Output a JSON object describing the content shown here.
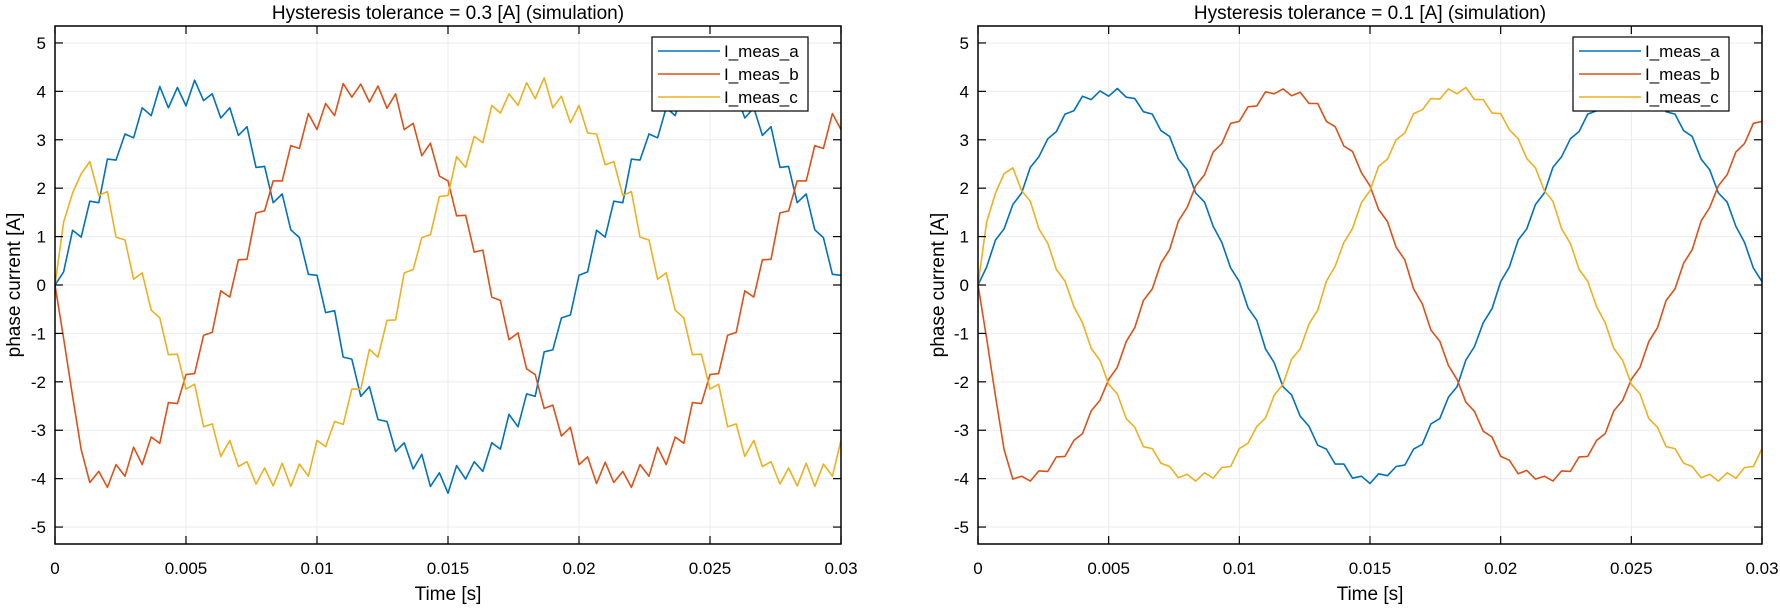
{
  "colors": {
    "I_meas_a": "#0072BD",
    "I_meas_b": "#D95319",
    "I_meas_c": "#EDB120",
    "grid": "#ebebeb"
  },
  "chart_data": [
    {
      "type": "line",
      "title": "Hysteresis tolerance = 0.3 [A] (simulation)",
      "xlabel": "Time [s]",
      "ylabel": "phase current [A]",
      "xlim": [
        0,
        0.03
      ],
      "ylim": [
        -5.35,
        5.35
      ],
      "xticks": [
        0,
        0.005,
        0.01,
        0.015,
        0.02,
        0.025,
        0.03
      ],
      "xtick_labels": [
        "0",
        "0.005",
        "0.01",
        "0.015",
        "0.02",
        "0.025",
        "0.03"
      ],
      "yticks": [
        -5,
        -4,
        -3,
        -2,
        -1,
        0,
        1,
        2,
        3,
        4,
        5
      ],
      "ytick_labels": [
        "-5",
        "-4",
        "-3",
        "-2",
        "-1",
        "0",
        "1",
        "2",
        "3",
        "4",
        "5"
      ],
      "grid": true,
      "legend_position": "top-right",
      "x": [
        0,
        0.00033,
        0.00067,
        0.001,
        0.00133,
        0.00167,
        0.002,
        0.00233,
        0.00267,
        0.003,
        0.00333,
        0.00367,
        0.004,
        0.00433,
        0.00467,
        0.005,
        0.00533,
        0.00567,
        0.006,
        0.00633,
        0.00667,
        0.007,
        0.00733,
        0.00767,
        0.008,
        0.00833,
        0.00867,
        0.009,
        0.00933,
        0.00967,
        0.01,
        0.01033,
        0.01067,
        0.011,
        0.01133,
        0.01167,
        0.012,
        0.01233,
        0.01267,
        0.013,
        0.01333,
        0.01367,
        0.014,
        0.01433,
        0.01467,
        0.015,
        0.01533,
        0.01567,
        0.016,
        0.01633,
        0.01667,
        0.017,
        0.01733,
        0.01767,
        0.018,
        0.01833,
        0.01867,
        0.019,
        0.01933,
        0.01967,
        0.02,
        0.02033,
        0.02067,
        0.021,
        0.02133,
        0.02167,
        0.022,
        0.02233,
        0.02267,
        0.023,
        0.02333,
        0.02367,
        0.024,
        0.02433,
        0.02467,
        0.025,
        0.02533,
        0.02567,
        0.026,
        0.02633,
        0.02667,
        0.027,
        0.02733,
        0.02767,
        0.028,
        0.02833,
        0.02867,
        0.029,
        0.02933,
        0.02967,
        0.03
      ],
      "series": [
        {
          "name": "I_meas_a",
          "values": [
            0,
            0.27,
            1.13,
            0.99,
            1.73,
            1.7,
            2.6,
            2.58,
            3.12,
            3.04,
            3.66,
            3.5,
            4.1,
            3.66,
            4.08,
            3.7,
            4.23,
            3.81,
            3.95,
            3.45,
            3.66,
            3.09,
            3.27,
            2.43,
            2.45,
            1.7,
            1.88,
            1.14,
            0.98,
            0.22,
            0.2,
            -0.57,
            -0.53,
            -1.49,
            -1.53,
            -2.3,
            -2.1,
            -2.78,
            -2.82,
            -3.44,
            -3.26,
            -3.8,
            -3.5,
            -4.16,
            -3.88,
            -4.3,
            -3.73,
            -4.01,
            -3.65,
            -3.85,
            -3.26,
            -3.39,
            -2.67,
            -2.93,
            -2.25,
            -2.3,
            -1.38,
            -1.34,
            -0.68,
            -0.62,
            0.2,
            0.27,
            1.13,
            0.99,
            1.73,
            1.7,
            2.6,
            2.58,
            3.12,
            3.04,
            3.66,
            3.5,
            4.1,
            3.66,
            4.08,
            3.7,
            4.23,
            3.81,
            3.95,
            3.45,
            3.66,
            3.09,
            3.27,
            2.43,
            2.45,
            1.7,
            1.88,
            1.14,
            0.98,
            0.22,
            0.2
          ]
        },
        {
          "name": "I_meas_b",
          "values": [
            0,
            -1.1,
            -2.3,
            -3.4,
            -4.08,
            -3.85,
            -4.18,
            -3.71,
            -3.95,
            -3.35,
            -3.71,
            -3.14,
            -3.27,
            -2.43,
            -2.45,
            -1.85,
            -1.83,
            -1.04,
            -0.98,
            -0.12,
            -0.25,
            0.52,
            0.53,
            1.49,
            1.53,
            2.15,
            2.15,
            2.88,
            2.82,
            3.54,
            3.21,
            3.75,
            3.5,
            4.16,
            3.88,
            4.15,
            3.78,
            4.11,
            3.65,
            3.95,
            3.21,
            3.34,
            2.67,
            2.93,
            2.25,
            2.15,
            1.43,
            1.44,
            0.68,
            0.72,
            -0.25,
            -0.32,
            -1.13,
            -0.99,
            -1.73,
            -1.85,
            -2.55,
            -2.48,
            -3.12,
            -2.94,
            -3.71,
            -3.55,
            -4.1,
            -3.66,
            -4.08,
            -3.85,
            -4.18,
            -3.71,
            -3.95,
            -3.35,
            -3.71,
            -3.14,
            -3.27,
            -2.43,
            -2.45,
            -1.85,
            -1.83,
            -1.04,
            -0.98,
            -0.12,
            -0.25,
            0.52,
            0.53,
            1.49,
            1.53,
            2.15,
            2.15,
            2.88,
            2.82,
            3.54,
            3.21
          ]
        },
        {
          "name": "I_meas_c",
          "values": [
            0,
            1.3,
            1.9,
            2.3,
            2.55,
            1.85,
            1.93,
            0.99,
            0.93,
            0.12,
            0.25,
            -0.52,
            -0.68,
            -1.44,
            -1.43,
            -2.15,
            -2.05,
            -2.93,
            -2.87,
            -3.54,
            -3.21,
            -3.75,
            -3.65,
            -4.11,
            -3.78,
            -4.15,
            -3.68,
            -4.16,
            -3.7,
            -3.95,
            -3.21,
            -3.34,
            -2.82,
            -2.88,
            -2.15,
            -2.15,
            -1.33,
            -1.49,
            -0.73,
            -0.72,
            0.25,
            0.32,
            0.98,
            1.04,
            1.83,
            1.85,
            2.65,
            2.43,
            3.07,
            2.94,
            3.71,
            3.55,
            3.95,
            3.71,
            4.18,
            3.85,
            4.28,
            3.66,
            3.9,
            3.35,
            3.71,
            3.14,
            3.12,
            2.48,
            2.55,
            1.85,
            1.93,
            0.99,
            0.93,
            0.12,
            0.25,
            -0.52,
            -0.68,
            -1.44,
            -1.43,
            -2.15,
            -2.05,
            -2.93,
            -2.87,
            -3.54,
            -3.21,
            -3.75,
            -3.65,
            -4.11,
            -3.78,
            -4.15,
            -3.68,
            -4.16,
            -3.7,
            -3.95,
            -3.21
          ]
        }
      ]
    },
    {
      "type": "line",
      "title": "Hysteresis tolerance = 0.1 [A] (simulation)",
      "xlabel": "Time [s]",
      "ylabel": "phase current [A]",
      "xlim": [
        0,
        0.03
      ],
      "ylim": [
        -5.35,
        5.35
      ],
      "xticks": [
        0,
        0.005,
        0.01,
        0.015,
        0.02,
        0.025,
        0.03
      ],
      "xtick_labels": [
        "0",
        "0.005",
        "0.01",
        "0.015",
        "0.02",
        "0.025",
        "0.03"
      ],
      "yticks": [
        -5,
        -4,
        -3,
        -2,
        -1,
        0,
        1,
        2,
        3,
        4,
        5
      ],
      "ytick_labels": [
        "-5",
        "-4",
        "-3",
        "-2",
        "-1",
        "0",
        "1",
        "2",
        "3",
        "4",
        "5"
      ],
      "grid": true,
      "legend_position": "top-right",
      "x": [
        0,
        0.00033,
        0.00067,
        0.001,
        0.00133,
        0.00167,
        0.002,
        0.00233,
        0.00267,
        0.003,
        0.00333,
        0.00367,
        0.004,
        0.00433,
        0.00467,
        0.005,
        0.00533,
        0.00567,
        0.006,
        0.00633,
        0.00667,
        0.007,
        0.00733,
        0.00767,
        0.008,
        0.00833,
        0.00867,
        0.009,
        0.00933,
        0.00967,
        0.01,
        0.01033,
        0.01067,
        0.011,
        0.01133,
        0.01167,
        0.012,
        0.01233,
        0.01267,
        0.013,
        0.01333,
        0.01367,
        0.014,
        0.01433,
        0.01467,
        0.015,
        0.01533,
        0.01567,
        0.016,
        0.01633,
        0.01667,
        0.017,
        0.01733,
        0.01767,
        0.018,
        0.01833,
        0.01867,
        0.019,
        0.01933,
        0.01967,
        0.02,
        0.02033,
        0.02067,
        0.021,
        0.02133,
        0.02167,
        0.022,
        0.02233,
        0.02267,
        0.023,
        0.02333,
        0.02367,
        0.024,
        0.02433,
        0.02467,
        0.025,
        0.02533,
        0.02567,
        0.026,
        0.02633,
        0.02667,
        0.027,
        0.02733,
        0.02767,
        0.028,
        0.02833,
        0.02867,
        0.029,
        0.02933,
        0.02967,
        0.03
      ],
      "series": [
        {
          "name": "I_meas_a",
          "values": [
            0,
            0.37,
            0.93,
            1.16,
            1.66,
            1.9,
            2.43,
            2.65,
            3.02,
            3.17,
            3.53,
            3.6,
            3.9,
            3.83,
            4.01,
            3.9,
            4.06,
            3.88,
            3.85,
            3.58,
            3.53,
            3.19,
            3.07,
            2.6,
            2.38,
            1.9,
            1.71,
            1.21,
            0.88,
            0.35,
            0.07,
            -0.47,
            -0.73,
            -1.32,
            -1.6,
            -2.1,
            -2.27,
            -2.71,
            -2.92,
            -3.31,
            -3.39,
            -3.7,
            -3.7,
            -3.99,
            -3.95,
            -4.1,
            -3.9,
            -3.94,
            -3.75,
            -3.72,
            -3.39,
            -3.29,
            -2.87,
            -2.76,
            -2.32,
            -2.1,
            -1.55,
            -1.27,
            -0.78,
            -0.49,
            0.07,
            0.37,
            0.93,
            1.16,
            1.66,
            1.9,
            2.43,
            2.65,
            3.02,
            3.17,
            3.53,
            3.6,
            3.9,
            3.83,
            4.01,
            3.9,
            4.06,
            3.88,
            3.85,
            3.58,
            3.53,
            3.19,
            3.07,
            2.6,
            2.38,
            1.9,
            1.71,
            1.21,
            0.88,
            0.35,
            0.07
          ]
        },
        {
          "name": "I_meas_b",
          "values": [
            0,
            -1.1,
            -2.3,
            -3.4,
            -4.01,
            -3.95,
            -4.05,
            -3.84,
            -3.85,
            -3.55,
            -3.54,
            -3.21,
            -3.07,
            -2.6,
            -2.38,
            -1.95,
            -1.7,
            -1.17,
            -0.88,
            -0.32,
            -0.08,
            0.45,
            0.73,
            1.32,
            1.6,
            2.05,
            2.28,
            2.75,
            2.92,
            3.34,
            3.38,
            3.68,
            3.7,
            3.99,
            3.95,
            4.05,
            3.91,
            3.98,
            3.75,
            3.75,
            3.38,
            3.27,
            2.87,
            2.76,
            2.32,
            2.05,
            1.56,
            1.31,
            0.78,
            0.52,
            -0.08,
            -0.39,
            -0.93,
            -1.16,
            -1.66,
            -1.95,
            -2.42,
            -2.61,
            -3.02,
            -3.14,
            -3.54,
            -3.62,
            -3.9,
            -3.83,
            -4.01,
            -3.95,
            -4.05,
            -3.84,
            -3.85,
            -3.55,
            -3.54,
            -3.21,
            -3.07,
            -2.6,
            -2.38,
            -1.95,
            -1.7,
            -1.17,
            -0.88,
            -0.32,
            -0.08,
            0.45,
            0.73,
            1.32,
            1.6,
            2.05,
            2.28,
            2.75,
            2.92,
            3.34,
            3.38
          ]
        },
        {
          "name": "I_meas_c",
          "values": [
            0,
            1.3,
            1.9,
            2.3,
            2.42,
            1.95,
            1.73,
            1.16,
            0.86,
            0.32,
            0.08,
            -0.45,
            -0.78,
            -1.31,
            -1.56,
            -2.05,
            -2.25,
            -2.76,
            -2.94,
            -3.34,
            -3.38,
            -3.68,
            -3.75,
            -3.98,
            -3.91,
            -4.05,
            -3.88,
            -3.99,
            -3.77,
            -3.75,
            -3.38,
            -3.27,
            -2.92,
            -2.75,
            -2.28,
            -2.05,
            -1.53,
            -1.32,
            -0.8,
            -0.52,
            0.08,
            0.39,
            0.88,
            1.17,
            1.7,
            1.95,
            2.45,
            2.6,
            3.0,
            3.14,
            3.54,
            3.62,
            3.85,
            3.84,
            4.05,
            3.95,
            4.08,
            3.83,
            3.83,
            3.55,
            3.54,
            3.21,
            3.02,
            2.61,
            2.42,
            1.95,
            1.73,
            1.16,
            0.86,
            0.32,
            0.08,
            -0.45,
            -0.78,
            -1.31,
            -1.56,
            -2.05,
            -2.25,
            -2.76,
            -2.94,
            -3.34,
            -3.38,
            -3.68,
            -3.75,
            -3.98,
            -3.91,
            -4.05,
            -3.88,
            -3.99,
            -3.77,
            -3.75,
            -3.38
          ]
        }
      ]
    }
  ]
}
